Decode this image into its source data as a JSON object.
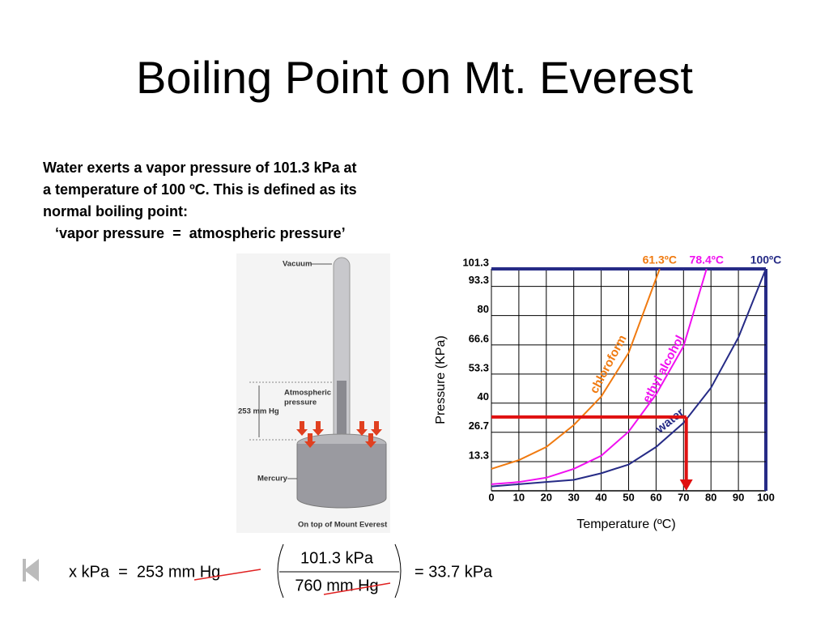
{
  "title": "Boiling Point on Mt. Everest",
  "text": [
    "Water exerts a vapor pressure of 101.3 kPa at",
    "a temperature of 100 ºC.  This is defined as its",
    "normal boiling point:",
    "   ‘vapor pressure  =  atmospheric pressure’"
  ],
  "barometer": {
    "vacuum": "Vacuum",
    "atmospheric": [
      "Atmospheric",
      "pressure"
    ],
    "height": "253 mm Hg",
    "mercury": "Mercury",
    "caption": "On top of Mount Everest"
  },
  "equation": {
    "left": "x kPa  =  253 mm Hg",
    "numerator": "101.3 kPa",
    "denominator": "760 mm Hg",
    "result": "= 33.7 kPa"
  },
  "chart_data": {
    "type": "line",
    "xlabel": "Temperature (ºC)",
    "ylabel": "Pressure (KPa)",
    "xlim": [
      0,
      100
    ],
    "ylim": [
      0,
      101.3
    ],
    "xticks": [
      0,
      10,
      20,
      30,
      40,
      50,
      60,
      70,
      80,
      90,
      100
    ],
    "yticks": [
      13.3,
      26.7,
      40.0,
      53.3,
      66.6,
      80.0,
      93.3,
      101.3
    ],
    "grid": true,
    "series": [
      {
        "name": "chloroform",
        "color": "#f07a10",
        "x": [
          0,
          10,
          20,
          30,
          40,
          50,
          61.3
        ],
        "values": [
          10,
          14,
          20,
          30,
          43,
          63,
          101.3
        ]
      },
      {
        "name": "ethyl alcohol",
        "color": "#f010f0",
        "x": [
          0,
          10,
          20,
          30,
          40,
          50,
          60,
          70,
          78.4
        ],
        "values": [
          3,
          4,
          6,
          10,
          16,
          27,
          44,
          66,
          101.3
        ]
      },
      {
        "name": "water",
        "color": "#262b86",
        "x": [
          0,
          10,
          20,
          30,
          40,
          50,
          60,
          70,
          80,
          90,
          100
        ],
        "values": [
          2,
          3,
          4,
          5,
          8,
          12,
          20,
          31,
          47,
          70,
          101.3
        ]
      }
    ],
    "annotations": [
      {
        "text": "61.3ºC",
        "x": 61.3,
        "color": "#f07a10"
      },
      {
        "text": "78.4ºC",
        "x": 78.4,
        "color": "#f010f0"
      },
      {
        "text": "100ºC",
        "x": 100,
        "color": "#262b86"
      }
    ],
    "reading": {
      "pressure": 33.7,
      "temperature": 71,
      "color": "#e01010"
    }
  }
}
